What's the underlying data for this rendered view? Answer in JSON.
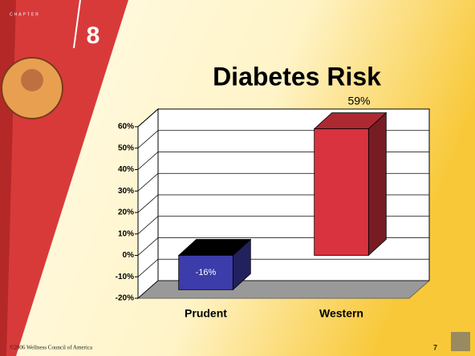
{
  "slide": {
    "chapter_label": "CHAPTER",
    "chapter_number": "8",
    "footer": "©2006 Wellness Council of America",
    "page_number": "7"
  },
  "chart_data": {
    "type": "bar",
    "title": "Diabetes Risk",
    "categories": [
      "Prudent",
      "Western"
    ],
    "values": [
      -16,
      59
    ],
    "value_labels": [
      "-16%",
      "59%"
    ],
    "colors": [
      "#3c3caa",
      "#d8333f"
    ],
    "ylim": [
      -20,
      60
    ],
    "yticks": [
      {
        "value": -20,
        "label": "-20%"
      },
      {
        "value": -10,
        "label": "-10%"
      },
      {
        "value": 0,
        "label": "0%"
      },
      {
        "value": 10,
        "label": "10%"
      },
      {
        "value": 20,
        "label": "20%"
      },
      {
        "value": 30,
        "label": "30%"
      },
      {
        "value": 40,
        "label": "40%"
      },
      {
        "value": 50,
        "label": "50%"
      },
      {
        "value": 60,
        "label": "60%"
      }
    ],
    "grid": true
  }
}
